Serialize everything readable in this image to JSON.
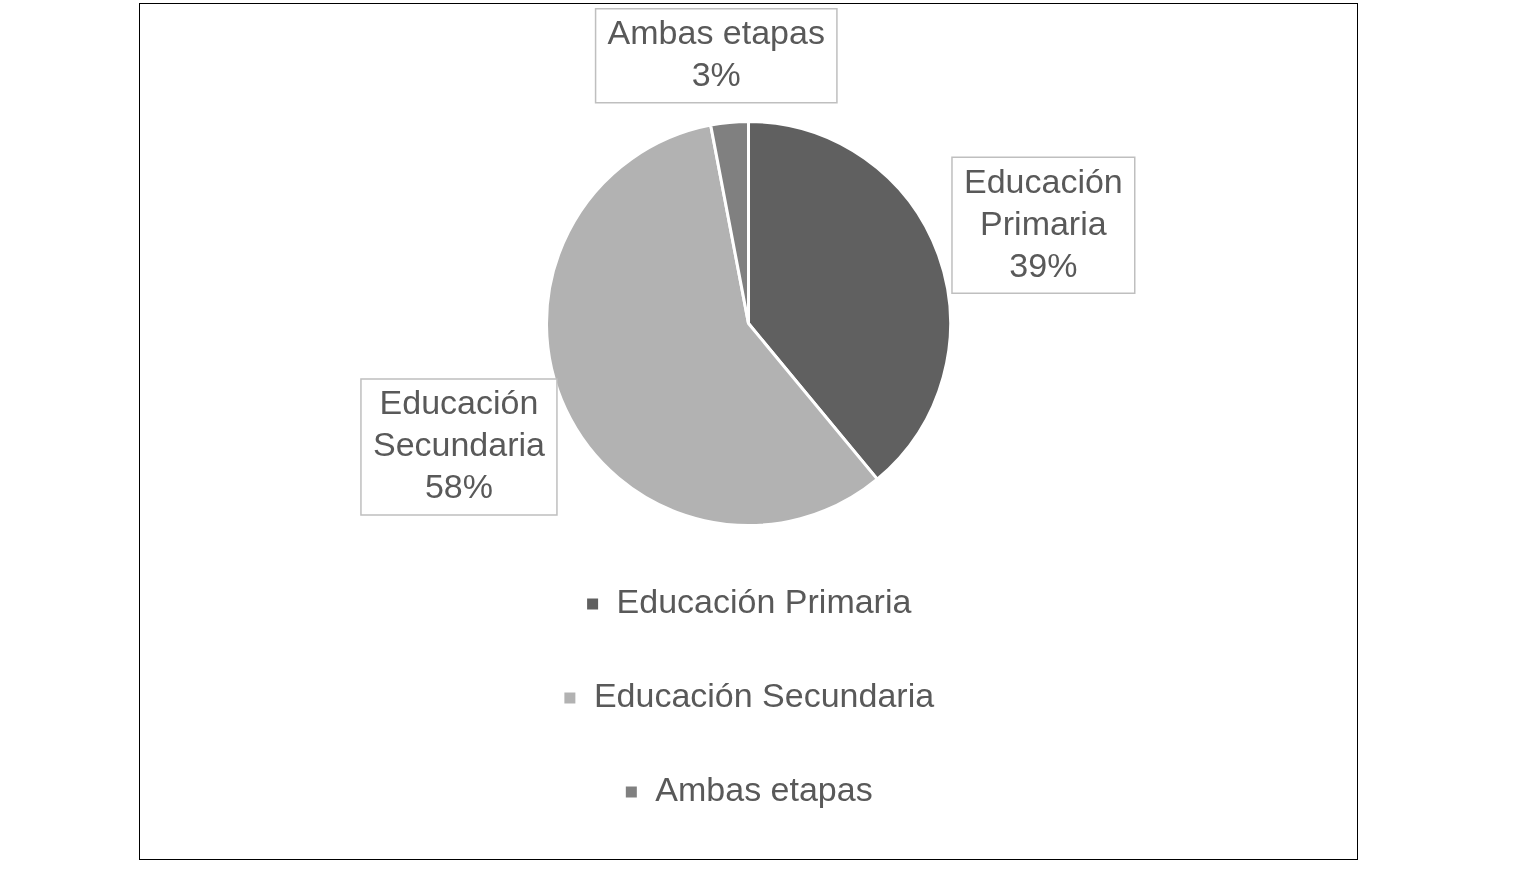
{
  "chart_data": {
    "type": "pie",
    "categories": [
      "Educación Primaria",
      "Educación Secundaria",
      "Ambas etapas"
    ],
    "values": [
      39,
      58,
      3
    ],
    "value_labels": [
      "39%",
      "58%",
      "3%"
    ],
    "colors": [
      "#606060",
      "#b2b2b2",
      "#808080"
    ],
    "legend": "bottom"
  }
}
